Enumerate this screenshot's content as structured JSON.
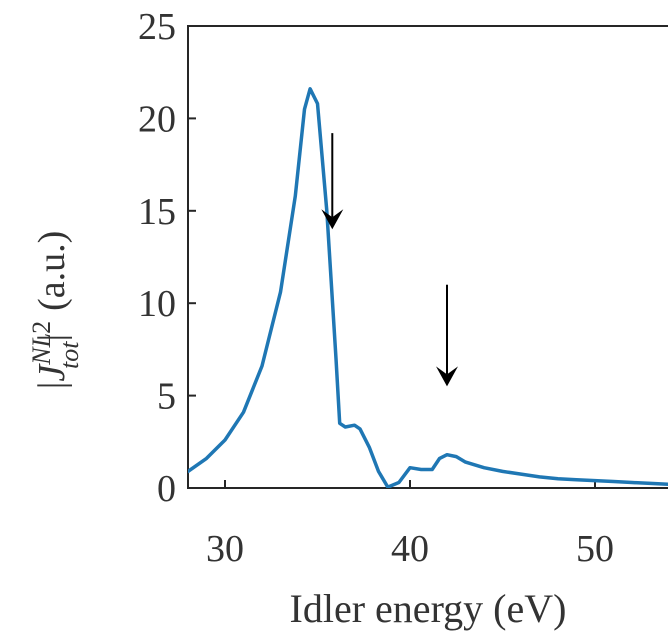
{
  "chart_data": {
    "type": "line",
    "xlabel": "Idler energy (eV)",
    "ylabel": {
      "open": "|",
      "symbol": "J",
      "superscript": "NL",
      "subscript": "tot",
      "power": "2",
      "unit": "(a.u.)"
    },
    "xlim": [
      28,
      54
    ],
    "ylim": [
      0,
      25
    ],
    "xticks": [
      30,
      40,
      50
    ],
    "yticks": [
      0,
      5,
      10,
      15,
      20,
      25
    ],
    "grid": false,
    "legend": "none",
    "line_color": "#1f77b4",
    "series": [
      {
        "x": [
          28.0,
          29.0,
          30.0,
          31.0,
          32.0,
          33.0,
          33.8,
          34.3,
          34.6,
          35.0,
          35.5,
          36.0,
          36.2,
          36.5,
          37.0,
          37.3,
          37.8,
          38.3,
          38.8,
          39.4,
          40.0,
          40.6,
          41.2,
          41.6,
          42.0,
          42.5,
          43.0,
          44.0,
          45.0,
          46.0,
          47.0,
          48.0,
          49.0,
          50.0,
          51.0,
          52.0,
          53.0,
          54.0
        ],
        "y": [
          0.9,
          1.6,
          2.6,
          4.1,
          6.6,
          10.6,
          15.8,
          20.5,
          21.6,
          20.8,
          15.0,
          7.0,
          3.5,
          3.3,
          3.4,
          3.2,
          2.2,
          0.9,
          0.05,
          0.3,
          1.1,
          1.0,
          1.0,
          1.6,
          1.8,
          1.7,
          1.4,
          1.1,
          0.9,
          0.75,
          0.6,
          0.5,
          0.45,
          0.4,
          0.35,
          0.3,
          0.25,
          0.2
        ]
      }
    ],
    "annotations": [
      {
        "type": "arrow",
        "x": 35.8,
        "y_from": 19.2,
        "y_to": 14.0
      },
      {
        "type": "arrow",
        "x": 42.0,
        "y_from": 11.0,
        "y_to": 5.5
      }
    ]
  }
}
